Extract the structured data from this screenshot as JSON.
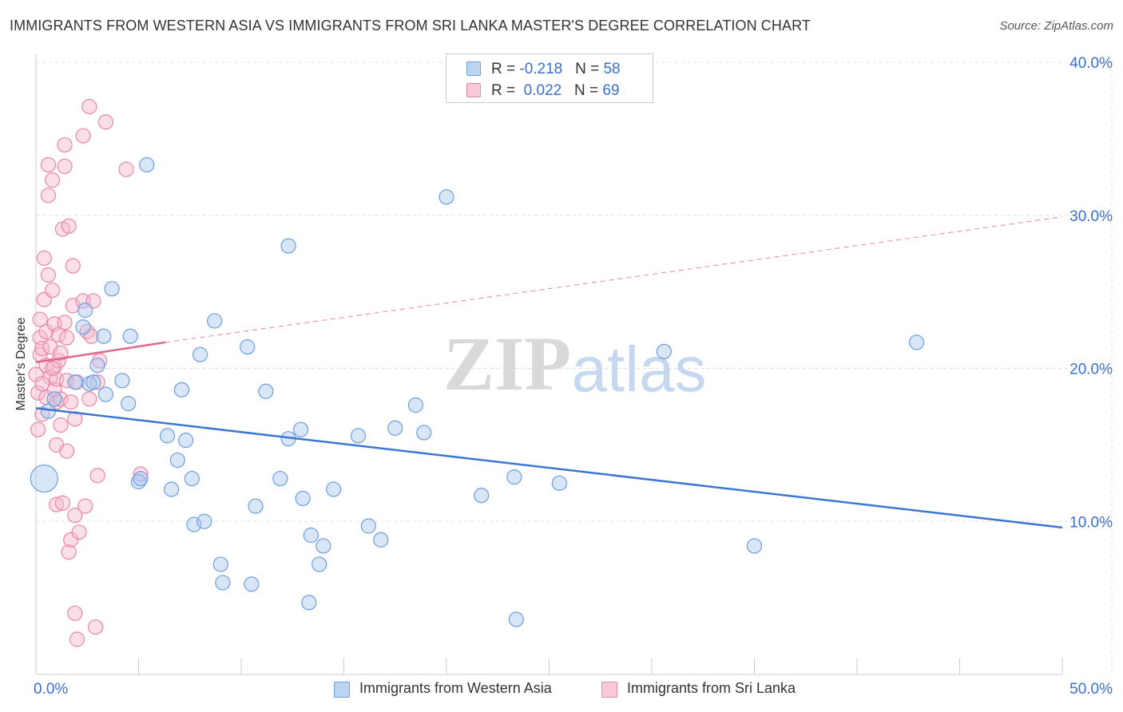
{
  "title": "IMMIGRANTS FROM WESTERN ASIA VS IMMIGRANTS FROM SRI LANKA MASTER'S DEGREE CORRELATION CHART",
  "source": "Source: ZipAtlas.com",
  "watermark": {
    "zip": "ZIP",
    "atlas": "atlas"
  },
  "legend_top": [
    {
      "r_label": "R = ",
      "r_value": "-0.218",
      "n_label": "N = ",
      "n_value": "58"
    },
    {
      "r_label": "R = ",
      "r_value": "0.022",
      "n_label": "N = ",
      "n_value": "69"
    }
  ],
  "colors": {
    "blue_fill": "#a9c8f0",
    "blue_stroke": "#6b9fe0",
    "blue_line": "#3a77d4",
    "pink_fill": "#f6b8cc",
    "pink_stroke": "#ea86a8",
    "pink_line": "#e06890",
    "axis_text": "#3a6fd0",
    "grid": "#dddddd"
  },
  "chart_data": {
    "type": "scatter",
    "title": "IMMIGRANTS FROM WESTERN ASIA VS IMMIGRANTS FROM SRI LANKA MASTER'S DEGREE CORRELATION CHART",
    "xlabel": "",
    "ylabel": "Master's Degree",
    "xlim": [
      0,
      50
    ],
    "ylim": [
      0,
      40
    ],
    "x_tick_labels": [
      "0.0%",
      "50.0%"
    ],
    "y_ticks": [
      10,
      20,
      30,
      40
    ],
    "y_tick_labels": [
      "10.0%",
      "20.0%",
      "30.0%",
      "40.0%"
    ],
    "grid": true,
    "legend_position": "bottom",
    "series": [
      {
        "name": "Immigrants from Western Asia",
        "color": "#a9c8f0",
        "r": -0.218,
        "n": 58,
        "trend": {
          "x": [
            0,
            50
          ],
          "y": [
            17.4,
            9.6
          ],
          "dashed_extension": false
        },
        "points": [
          {
            "x": 0.4,
            "y": 12.8,
            "big": true
          },
          {
            "x": 0.6,
            "y": 17.2
          },
          {
            "x": 1.9,
            "y": 19.1
          },
          {
            "x": 2.4,
            "y": 23.8
          },
          {
            "x": 2.6,
            "y": 19.0
          },
          {
            "x": 2.3,
            "y": 22.7
          },
          {
            "x": 3.0,
            "y": 20.2
          },
          {
            "x": 3.7,
            "y": 25.2
          },
          {
            "x": 2.8,
            "y": 19.1
          },
          {
            "x": 3.3,
            "y": 22.1
          },
          {
            "x": 3.4,
            "y": 18.3
          },
          {
            "x": 4.2,
            "y": 19.2
          },
          {
            "x": 4.6,
            "y": 22.1
          },
          {
            "x": 4.5,
            "y": 17.7
          },
          {
            "x": 5.0,
            "y": 12.6
          },
          {
            "x": 5.1,
            "y": 12.8
          },
          {
            "x": 5.4,
            "y": 33.3
          },
          {
            "x": 6.4,
            "y": 15.6
          },
          {
            "x": 6.9,
            "y": 14.0
          },
          {
            "x": 6.6,
            "y": 12.1
          },
          {
            "x": 7.1,
            "y": 18.6
          },
          {
            "x": 7.3,
            "y": 15.3
          },
          {
            "x": 7.6,
            "y": 12.8
          },
          {
            "x": 7.7,
            "y": 9.8
          },
          {
            "x": 8.0,
            "y": 20.9
          },
          {
            "x": 8.2,
            "y": 10.0
          },
          {
            "x": 8.7,
            "y": 23.1
          },
          {
            "x": 9.1,
            "y": 6.0
          },
          {
            "x": 9.0,
            "y": 7.2
          },
          {
            "x": 10.3,
            "y": 21.4
          },
          {
            "x": 10.5,
            "y": 5.9
          },
          {
            "x": 10.7,
            "y": 11.0
          },
          {
            "x": 11.2,
            "y": 18.5
          },
          {
            "x": 11.9,
            "y": 12.8
          },
          {
            "x": 12.3,
            "y": 15.4
          },
          {
            "x": 12.9,
            "y": 16.0
          },
          {
            "x": 12.3,
            "y": 28.0
          },
          {
            "x": 13.0,
            "y": 11.5
          },
          {
            "x": 13.4,
            "y": 9.1
          },
          {
            "x": 13.8,
            "y": 7.2
          },
          {
            "x": 14.0,
            "y": 8.4
          },
          {
            "x": 13.3,
            "y": 4.7
          },
          {
            "x": 14.5,
            "y": 12.1
          },
          {
            "x": 15.7,
            "y": 15.6
          },
          {
            "x": 16.2,
            "y": 9.7
          },
          {
            "x": 16.8,
            "y": 8.8
          },
          {
            "x": 17.5,
            "y": 16.1
          },
          {
            "x": 18.5,
            "y": 17.6
          },
          {
            "x": 18.9,
            "y": 15.8
          },
          {
            "x": 20.0,
            "y": 31.2
          },
          {
            "x": 21.7,
            "y": 11.7
          },
          {
            "x": 23.3,
            "y": 12.9
          },
          {
            "x": 23.4,
            "y": 3.6
          },
          {
            "x": 25.5,
            "y": 12.5
          },
          {
            "x": 30.6,
            "y": 21.1
          },
          {
            "x": 35.0,
            "y": 8.4
          },
          {
            "x": 42.9,
            "y": 21.7
          },
          {
            "x": 0.9,
            "y": 18.0
          }
        ]
      },
      {
        "name": "Immigrants from Sri Lanka",
        "color": "#f6b8cc",
        "r": 0.022,
        "n": 69,
        "trend": {
          "x": [
            0,
            6.3,
            50
          ],
          "y": [
            20.4,
            21.7,
            29.9
          ],
          "dashed_extension": true
        },
        "points": [
          {
            "x": 0.0,
            "y": 19.6
          },
          {
            "x": 0.1,
            "y": 16.0
          },
          {
            "x": 0.1,
            "y": 18.4
          },
          {
            "x": 0.2,
            "y": 20.9
          },
          {
            "x": 0.2,
            "y": 22.0
          },
          {
            "x": 0.2,
            "y": 23.2
          },
          {
            "x": 0.3,
            "y": 17.0
          },
          {
            "x": 0.3,
            "y": 21.3
          },
          {
            "x": 0.4,
            "y": 24.5
          },
          {
            "x": 0.4,
            "y": 27.2
          },
          {
            "x": 0.5,
            "y": 18.1
          },
          {
            "x": 0.5,
            "y": 20.2
          },
          {
            "x": 0.5,
            "y": 22.4
          },
          {
            "x": 0.6,
            "y": 26.1
          },
          {
            "x": 0.6,
            "y": 33.3
          },
          {
            "x": 0.6,
            "y": 31.3
          },
          {
            "x": 0.7,
            "y": 19.4
          },
          {
            "x": 0.7,
            "y": 21.4
          },
          {
            "x": 0.8,
            "y": 25.1
          },
          {
            "x": 0.8,
            "y": 32.3
          },
          {
            "x": 0.9,
            "y": 18.6
          },
          {
            "x": 0.9,
            "y": 20.1
          },
          {
            "x": 0.9,
            "y": 22.9
          },
          {
            "x": 1.0,
            "y": 15.0
          },
          {
            "x": 1.0,
            "y": 17.8
          },
          {
            "x": 1.0,
            "y": 19.3
          },
          {
            "x": 1.0,
            "y": 11.1
          },
          {
            "x": 1.1,
            "y": 20.5
          },
          {
            "x": 1.1,
            "y": 22.2
          },
          {
            "x": 1.2,
            "y": 16.3
          },
          {
            "x": 1.2,
            "y": 18.0
          },
          {
            "x": 1.3,
            "y": 11.2
          },
          {
            "x": 1.3,
            "y": 29.1
          },
          {
            "x": 1.4,
            "y": 33.2
          },
          {
            "x": 1.4,
            "y": 34.6
          },
          {
            "x": 1.5,
            "y": 14.6
          },
          {
            "x": 1.5,
            "y": 22.0
          },
          {
            "x": 1.5,
            "y": 19.2
          },
          {
            "x": 1.6,
            "y": 8.0
          },
          {
            "x": 1.6,
            "y": 29.3
          },
          {
            "x": 1.7,
            "y": 8.8
          },
          {
            "x": 1.7,
            "y": 17.8
          },
          {
            "x": 1.8,
            "y": 24.1
          },
          {
            "x": 1.8,
            "y": 26.7
          },
          {
            "x": 1.9,
            "y": 10.4
          },
          {
            "x": 1.9,
            "y": 16.7
          },
          {
            "x": 1.9,
            "y": 4.0
          },
          {
            "x": 2.0,
            "y": 19.1
          },
          {
            "x": 2.0,
            "y": 2.3
          },
          {
            "x": 2.1,
            "y": 9.3
          },
          {
            "x": 2.3,
            "y": 24.4
          },
          {
            "x": 2.3,
            "y": 35.2
          },
          {
            "x": 2.4,
            "y": 11.0
          },
          {
            "x": 2.5,
            "y": 22.4
          },
          {
            "x": 2.6,
            "y": 37.1
          },
          {
            "x": 2.6,
            "y": 18.0
          },
          {
            "x": 2.7,
            "y": 22.1
          },
          {
            "x": 2.8,
            "y": 24.4
          },
          {
            "x": 2.9,
            "y": 3.1
          },
          {
            "x": 3.1,
            "y": 20.5
          },
          {
            "x": 3.0,
            "y": 19.1
          },
          {
            "x": 3.0,
            "y": 13.0
          },
          {
            "x": 3.4,
            "y": 36.1
          },
          {
            "x": 4.4,
            "y": 33.0
          },
          {
            "x": 5.1,
            "y": 13.1
          },
          {
            "x": 1.4,
            "y": 23.0
          },
          {
            "x": 0.8,
            "y": 20.0
          },
          {
            "x": 1.2,
            "y": 21.0
          },
          {
            "x": 0.3,
            "y": 19.0
          }
        ]
      }
    ]
  },
  "legend_bottom": [
    {
      "label": "Immigrants from Western Asia"
    },
    {
      "label": "Immigrants from Sri Lanka"
    }
  ]
}
